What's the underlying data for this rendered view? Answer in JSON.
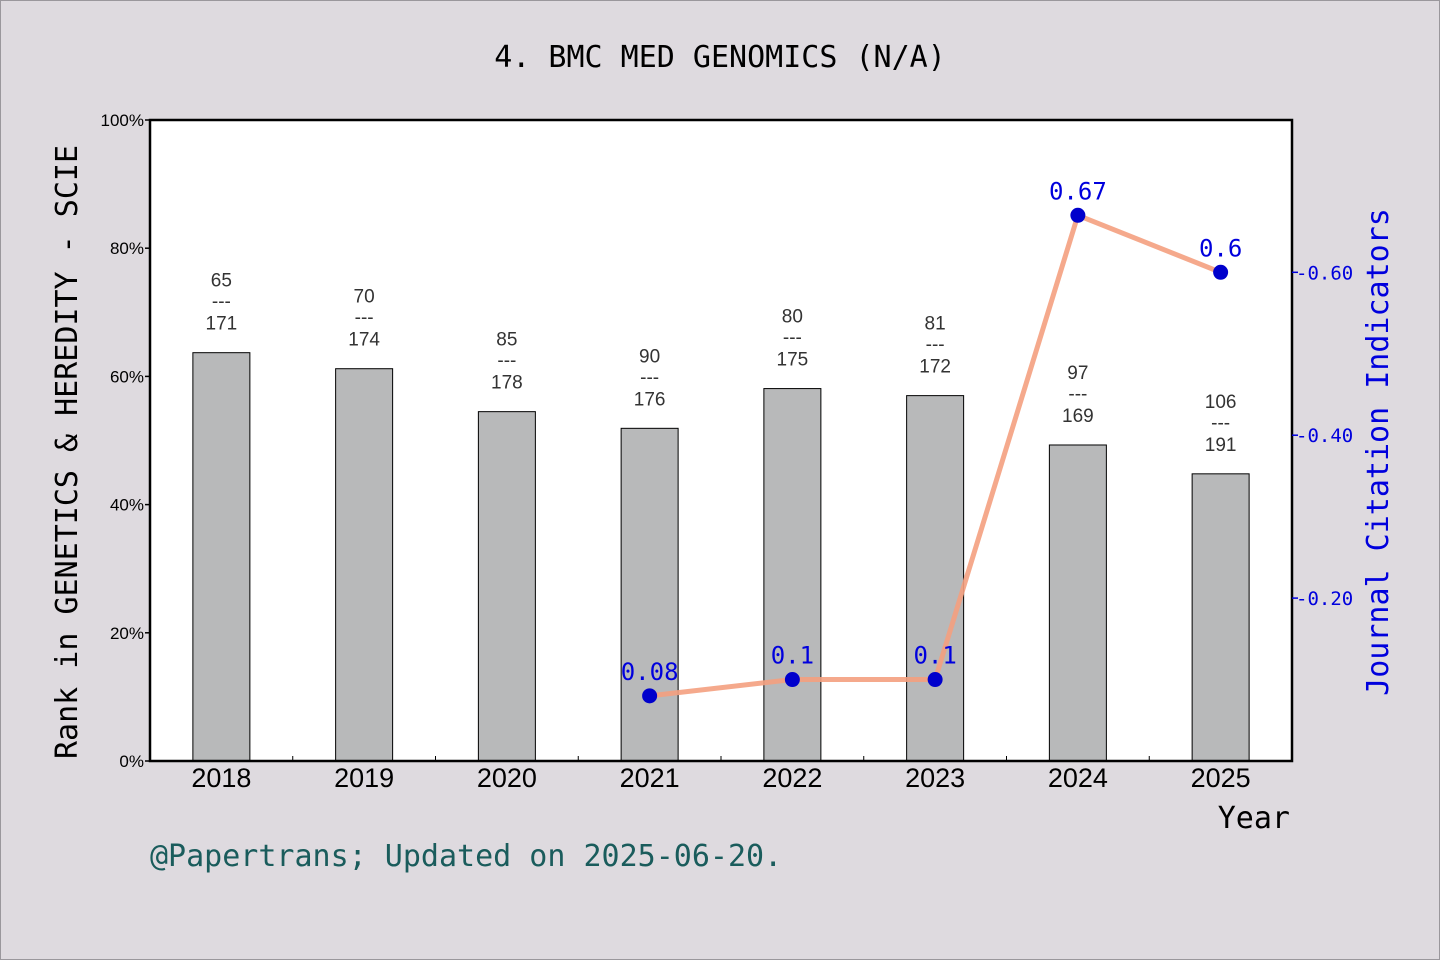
{
  "chart_data": {
    "type": "bar",
    "title": "4. BMC MED GENOMICS (N/A)",
    "xlabel": "Year",
    "ylabel": "Rank in GENETICS & HEREDITY - SCIE",
    "y2label": "Journal Citation Indicators",
    "categories": [
      "2018",
      "2019",
      "2020",
      "2021",
      "2022",
      "2023",
      "2024",
      "2025"
    ],
    "ylim": [
      0,
      100
    ],
    "yticks": [
      "0%",
      "20%",
      "40%",
      "60%",
      "80%",
      "100%"
    ],
    "y2lim": [
      0,
      0.787
    ],
    "y2ticks": [
      {
        "value": 0.2,
        "label": "0.20"
      },
      {
        "value": 0.4,
        "label": "0.40"
      },
      {
        "value": 0.6,
        "label": "0.60"
      }
    ],
    "series": [
      {
        "kind": "bar",
        "axis": "left",
        "color": "#b8b9ba",
        "values": [
          63.7,
          61.2,
          54.5,
          51.9,
          58.1,
          57.0,
          49.3,
          44.8
        ],
        "labels": [
          {
            "rank": "65",
            "total": "171"
          },
          {
            "rank": "70",
            "total": "174"
          },
          {
            "rank": "85",
            "total": "178"
          },
          {
            "rank": "90",
            "total": "176"
          },
          {
            "rank": "80",
            "total": "175"
          },
          {
            "rank": "81",
            "total": "172"
          },
          {
            "rank": "97",
            "total": "169"
          },
          {
            "rank": "106",
            "total": "191"
          }
        ],
        "dash": "---"
      },
      {
        "kind": "line",
        "axis": "right",
        "color": "#f4a080",
        "marker_color": "#0000cc",
        "values": [
          null,
          null,
          null,
          0.08,
          0.1,
          0.1,
          0.67,
          0.6
        ],
        "value_labels": [
          null,
          null,
          null,
          "0.08",
          "0.1",
          "0.1",
          "0.67",
          "0.6"
        ]
      }
    ],
    "grid": false,
    "legend": "none"
  },
  "footer": "@Papertrans; Updated on 2025-06-20."
}
